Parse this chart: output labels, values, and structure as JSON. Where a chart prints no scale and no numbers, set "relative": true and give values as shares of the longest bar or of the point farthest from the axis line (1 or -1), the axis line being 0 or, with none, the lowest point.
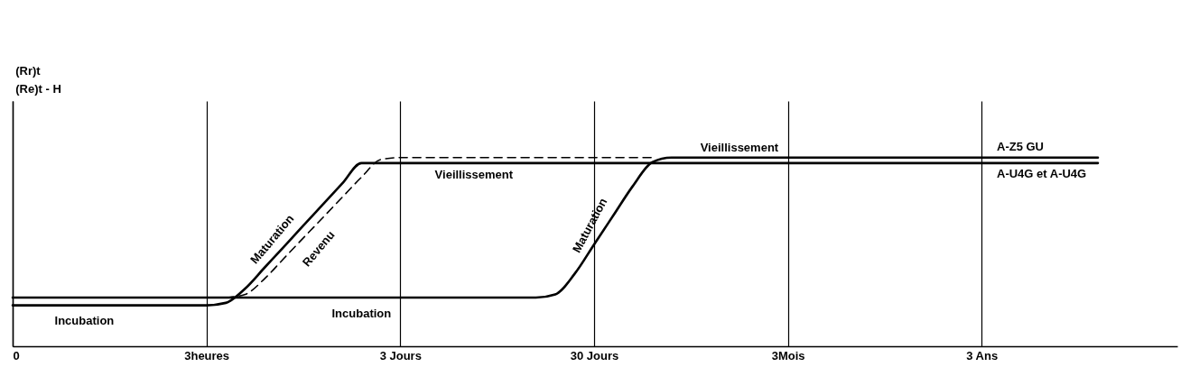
{
  "chart_data": {
    "type": "line",
    "relative": true,
    "categories": [
      "0",
      null,
      null,
      null,
      null,
      null,
      null,
      null,
      null,
      null,
      "3heures",
      null,
      null,
      null,
      null,
      null,
      null,
      null,
      null,
      null,
      "3 Jours",
      null,
      null,
      null,
      null,
      null,
      null,
      null,
      null,
      null,
      "30 Jours",
      null,
      null,
      null,
      null,
      null,
      null,
      null,
      null,
      null,
      "3Mois",
      null,
      null,
      null,
      null,
      null,
      null,
      null,
      null,
      null,
      "3 Ans",
      null,
      null,
      null,
      null,
      null,
      null,
      null,
      null,
      null,
      null
    ],
    "grid": "x",
    "marker": "none",
    "series": [
      {
        "name": "A-U4G et A-U4G",
        "color": "#000000",
        "line_style": "solid",
        "values": [
          0.217,
          0.217,
          0.217,
          0.217,
          0.217,
          0.217,
          0.217,
          0.217,
          0.217,
          0.217,
          0.217,
          0.23,
          0.306,
          0.417,
          0.528,
          0.64,
          0.751,
          0.862,
          0.971,
          0.971,
          0.971,
          0.971,
          0.971,
          0.971,
          0.971,
          0.971,
          0.971,
          0.971,
          0.971,
          0.971,
          0.971,
          0.971,
          0.971,
          0.971,
          0.971,
          0.971,
          0.971,
          0.971,
          0.971,
          0.971,
          0.971,
          0.971,
          0.971,
          0.971,
          0.971,
          0.971,
          0.971,
          0.971,
          0.971,
          0.971,
          0.971,
          0.971,
          0.971,
          0.971,
          0.971,
          0.971,
          0.971,
          null,
          null,
          null,
          null
        ]
      },
      {
        "name": "A-Z5 GU",
        "color": "#000000",
        "line_style": "solid",
        "values": [
          0.258,
          0.258,
          0.258,
          0.258,
          0.258,
          0.258,
          0.258,
          0.258,
          0.258,
          0.258,
          0.258,
          0.258,
          0.258,
          0.258,
          0.258,
          0.258,
          0.258,
          0.258,
          0.258,
          0.258,
          0.258,
          0.258,
          0.258,
          0.258,
          0.258,
          0.258,
          0.258,
          0.258,
          0.275,
          0.384,
          0.539,
          0.694,
          0.849,
          0.975,
          1,
          1,
          1,
          1,
          1,
          1,
          1,
          1,
          1,
          1,
          1,
          1,
          1,
          1,
          1,
          1,
          1,
          1,
          1,
          1,
          1,
          1,
          1,
          null,
          null,
          null,
          null
        ]
      },
      {
        "color": "#000000",
        "line_style": "dashed",
        "values": [
          null,
          null,
          null,
          null,
          null,
          null,
          null,
          null,
          null,
          null,
          null,
          0.258,
          0.275,
          0.358,
          0.466,
          0.574,
          0.681,
          0.789,
          0.896,
          0.99,
          1,
          1,
          1,
          1,
          1,
          1,
          1,
          1,
          1,
          1,
          1,
          1,
          1,
          1,
          null,
          null,
          null,
          null,
          null,
          null,
          null,
          null,
          null,
          null,
          null,
          null,
          null,
          null,
          null,
          null,
          null,
          null,
          null,
          null,
          null,
          null,
          null,
          null,
          null,
          null,
          null
        ]
      }
    ],
    "annotations": [
      "(Rr)t",
      "(Re)t - H",
      "Incubation",
      "Maturation",
      "Revenu",
      "Vieillissement",
      "Incubation",
      "Maturation",
      "Vieillissement"
    ]
  }
}
